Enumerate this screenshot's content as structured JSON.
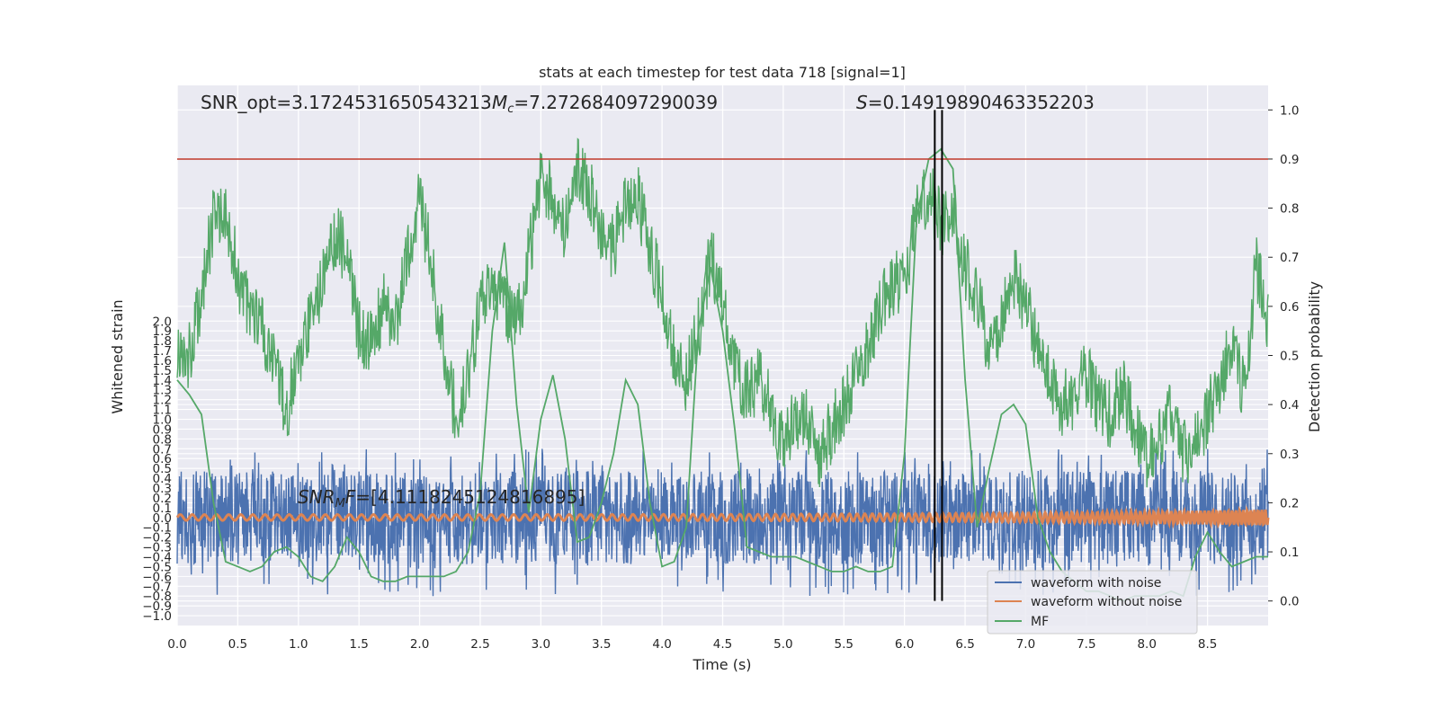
{
  "chart_data": {
    "type": "line",
    "title": "stats at each timestep for test data 718 [signal=1]",
    "xlabel": "Time (s)",
    "ylabel_left": "Whitened strain",
    "ylabel_right": "Detection probability",
    "xlim": [
      0,
      9
    ],
    "ylim_left": [
      -1.1,
      4.4
    ],
    "ylim_right": [
      -0.05,
      1.05
    ],
    "x_ticks": [
      "0.0",
      "0.5",
      "1.0",
      "1.5",
      "2.0",
      "2.5",
      "3.0",
      "3.5",
      "4.0",
      "4.5",
      "5.0",
      "5.5",
      "6.0",
      "6.5",
      "7.0",
      "7.5",
      "8.0",
      "8.5"
    ],
    "y_left_ticks": [
      "−1.0",
      "−0.9",
      "−0.8",
      "−0.7",
      "−0.6",
      "−0.5",
      "−0.4",
      "−0.3",
      "−0.2",
      "−0.1",
      "0.0",
      "0.1",
      "0.2",
      "0.3",
      "0.4",
      "0.5",
      "0.6",
      "0.7",
      "0.8",
      "0.9",
      "1.0",
      "1.1",
      "1.2",
      "1.3",
      "1.4",
      "1.5",
      "1.6",
      "1.7",
      "1.8",
      "1.9",
      "2.0"
    ],
    "y_right_ticks": [
      "0.0",
      "0.1",
      "0.2",
      "0.3",
      "0.4",
      "0.5",
      "0.6",
      "0.7",
      "0.8",
      "0.9",
      "1.0"
    ],
    "threshold": 0.9,
    "vlines": [
      6.25,
      6.31
    ],
    "grid": true,
    "legend_position": "lower right",
    "annotations": {
      "snr_opt": "SNR_opt=3.1724531650543213",
      "mc_symbol": "M",
      "mc_sub": "c",
      "mc_value": "=7.272684097290039",
      "s_symbol": "S",
      "s_value": "=0.14919890463352203",
      "snrmf_symbol": "SNR",
      "snrmf_sub": "M",
      "snrmf_tail": "F",
      "snrmf_value": "=[4.1118245124816895]"
    },
    "series": [
      {
        "name": "waveform with noise",
        "axis": "left",
        "color": "#4c72b0",
        "amplitude_range": [
          -0.8,
          0.7
        ]
      },
      {
        "name": "waveform without noise",
        "axis": "left",
        "color": "#dd8452",
        "amplitude_range": [
          -0.1,
          0.08
        ]
      },
      {
        "name": "MF",
        "axis": "right",
        "color": "#55a868",
        "x": [
          0.0,
          0.1,
          0.2,
          0.3,
          0.4,
          0.5,
          0.6,
          0.7,
          0.8,
          0.9,
          1.0,
          1.1,
          1.2,
          1.3,
          1.4,
          1.5,
          1.6,
          1.7,
          1.8,
          1.9,
          2.0,
          2.1,
          2.2,
          2.3,
          2.4,
          2.5,
          2.6,
          2.7,
          2.8,
          2.9,
          3.0,
          3.1,
          3.2,
          3.3,
          3.4,
          3.5,
          3.6,
          3.7,
          3.8,
          3.9,
          4.0,
          4.1,
          4.2,
          4.3,
          4.4,
          4.5,
          4.6,
          4.7,
          4.8,
          4.9,
          5.0,
          5.1,
          5.2,
          5.3,
          5.4,
          5.5,
          5.6,
          5.7,
          5.8,
          5.9,
          6.0,
          6.1,
          6.2,
          6.3,
          6.4,
          6.5,
          6.6,
          6.7,
          6.8,
          6.9,
          7.0,
          7.1,
          7.2,
          7.3,
          7.4,
          7.5,
          7.6,
          7.7,
          7.8,
          7.9,
          8.0,
          8.1,
          8.2,
          8.3,
          8.4,
          8.5,
          8.6,
          8.7,
          8.8,
          8.9,
          9.0
        ],
        "values": [
          0.45,
          0.42,
          0.38,
          0.2,
          0.08,
          0.07,
          0.06,
          0.07,
          0.1,
          0.11,
          0.09,
          0.05,
          0.04,
          0.07,
          0.13,
          0.1,
          0.05,
          0.04,
          0.04,
          0.05,
          0.05,
          0.05,
          0.05,
          0.06,
          0.1,
          0.22,
          0.55,
          0.73,
          0.4,
          0.18,
          0.37,
          0.46,
          0.33,
          0.12,
          0.13,
          0.2,
          0.3,
          0.45,
          0.4,
          0.2,
          0.07,
          0.08,
          0.15,
          0.55,
          0.68,
          0.55,
          0.35,
          0.11,
          0.1,
          0.09,
          0.09,
          0.09,
          0.08,
          0.07,
          0.06,
          0.06,
          0.07,
          0.06,
          0.06,
          0.07,
          0.3,
          0.78,
          0.9,
          0.92,
          0.88,
          0.45,
          0.15,
          0.27,
          0.38,
          0.4,
          0.36,
          0.17,
          0.1,
          0.06,
          0.04,
          0.02,
          0.02,
          0.01,
          0.0,
          0.01,
          0.01,
          0.01,
          0.02,
          0.01,
          0.09,
          0.14,
          0.1,
          0.07,
          0.08,
          0.09,
          0.09
        ]
      },
      {
        "name": "detection probability",
        "axis": "right",
        "color": "#55a868",
        "in_legend": false,
        "x": [
          0.0,
          0.1,
          0.2,
          0.3,
          0.4,
          0.5,
          0.6,
          0.7,
          0.8,
          0.9,
          1.0,
          1.1,
          1.2,
          1.3,
          1.4,
          1.5,
          1.6,
          1.7,
          1.8,
          1.9,
          2.0,
          2.1,
          2.2,
          2.3,
          2.4,
          2.5,
          2.6,
          2.7,
          2.8,
          2.9,
          3.0,
          3.1,
          3.2,
          3.3,
          3.4,
          3.5,
          3.6,
          3.7,
          3.8,
          3.9,
          4.0,
          4.1,
          4.2,
          4.3,
          4.4,
          4.5,
          4.6,
          4.7,
          4.8,
          4.9,
          5.0,
          5.1,
          5.2,
          5.3,
          5.4,
          5.5,
          5.6,
          5.7,
          5.8,
          5.9,
          6.0,
          6.1,
          6.2,
          6.3,
          6.4,
          6.5,
          6.6,
          6.7,
          6.8,
          6.9,
          7.0,
          7.1,
          7.2,
          7.3,
          7.4,
          7.5,
          7.6,
          7.7,
          7.8,
          7.9,
          8.0,
          8.1,
          8.2,
          8.3,
          8.4,
          8.5,
          8.6,
          8.7,
          8.8,
          8.9,
          9.0
        ],
        "values": [
          0.52,
          0.5,
          0.62,
          0.78,
          0.8,
          0.66,
          0.58,
          0.55,
          0.48,
          0.38,
          0.5,
          0.58,
          0.65,
          0.75,
          0.7,
          0.55,
          0.52,
          0.6,
          0.55,
          0.7,
          0.82,
          0.68,
          0.5,
          0.38,
          0.45,
          0.6,
          0.66,
          0.6,
          0.55,
          0.7,
          0.86,
          0.82,
          0.76,
          0.88,
          0.84,
          0.76,
          0.72,
          0.8,
          0.82,
          0.72,
          0.62,
          0.5,
          0.45,
          0.55,
          0.7,
          0.62,
          0.48,
          0.42,
          0.45,
          0.4,
          0.32,
          0.38,
          0.36,
          0.3,
          0.35,
          0.4,
          0.46,
          0.52,
          0.6,
          0.65,
          0.66,
          0.78,
          0.84,
          0.76,
          0.8,
          0.68,
          0.62,
          0.5,
          0.56,
          0.66,
          0.6,
          0.52,
          0.44,
          0.4,
          0.42,
          0.46,
          0.4,
          0.38,
          0.43,
          0.36,
          0.3,
          0.34,
          0.38,
          0.3,
          0.32,
          0.38,
          0.44,
          0.52,
          0.42,
          0.68,
          0.57
        ]
      }
    ]
  }
}
